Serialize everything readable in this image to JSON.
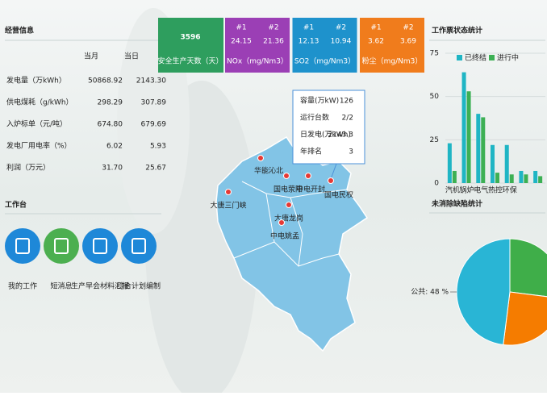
{
  "business_table": {
    "title": "经营信息",
    "columns": [
      "当月",
      "当日"
    ],
    "rows": [
      [
        "发电量（万kWh）",
        "50868.92",
        "2143.30"
      ],
      [
        "供电煤耗（g/kWh）",
        "298.29",
        "307.89"
      ],
      [
        "入炉标单（元/吨）",
        "674.80",
        "679.69"
      ],
      [
        "发电厂用电率（%）",
        "6.02",
        "5.93"
      ],
      [
        "利润（万元）",
        "31.70",
        "25.67"
      ]
    ]
  },
  "workbench": {
    "title": "工作台",
    "items": [
      {
        "label": "我的工作",
        "color": "#1e88d8"
      },
      {
        "label": "短消息",
        "color": "#4caf50"
      },
      {
        "label": "生产早会材料汇报",
        "color": "#1e88d8"
      },
      {
        "label": "综合计划编制",
        "color": "#1e88d8"
      }
    ]
  },
  "kpis": {
    "safety": {
      "value": "3596",
      "label": "安全生产天数（天）",
      "color": "#2e9e5e"
    },
    "emissions": [
      {
        "units": [
          "#1",
          "#2"
        ],
        "values": [
          "24.15",
          "21.36"
        ],
        "label": "NOx（mg/Nm3）",
        "color": "#9b3fb5"
      },
      {
        "units": [
          "#1",
          "#2"
        ],
        "values": [
          "12.13",
          "10.94"
        ],
        "label": "SO2（mg/Nm3）",
        "color": "#1e92cc"
      },
      {
        "units": [
          "#1",
          "#2"
        ],
        "values": [
          "3.62",
          "3.69"
        ],
        "label": "粉尘（mg/Nm3）",
        "color": "#f07c1c"
      }
    ]
  },
  "map": {
    "plants": [
      "华能沁北",
      "大唐三门峡",
      "国电荥阳",
      "中电开封",
      "国电民权",
      "大唐龙岗",
      "中电姚孟"
    ],
    "tooltip": [
      [
        "容量(万kW)",
        "126"
      ],
      [
        "运行台数",
        "2/2"
      ],
      [
        "日发电(万kWh)",
        "2143.3"
      ],
      [
        "年排名",
        "3"
      ]
    ]
  },
  "work_ticket_chart": {
    "type": "bar",
    "title": "工作票状态统计",
    "categories": [
      "汽机",
      "锅炉",
      "电气",
      "热控",
      "环保",
      null,
      null
    ],
    "series": [
      {
        "name": "已终结",
        "color": "#1fb5c4",
        "values": [
          23,
          64,
          40,
          22,
          22,
          7,
          7
        ]
      },
      {
        "name": "进行中",
        "color": "#3cb054",
        "values": [
          7,
          53,
          38,
          6,
          5,
          5,
          4
        ]
      }
    ],
    "ylim": [
      0,
      75
    ],
    "yticks": [
      0,
      25,
      50,
      75
    ],
    "grid": true
  },
  "defect_chart": {
    "type": "pie",
    "title": "未消除缺陷统计",
    "values": [
      27,
      25,
      48
    ],
    "colors": [
      "#3fae49",
      "#f57c00",
      "#29b5d5"
    ],
    "value_labels": [
      null,
      null,
      "公共: 48 %"
    ]
  }
}
